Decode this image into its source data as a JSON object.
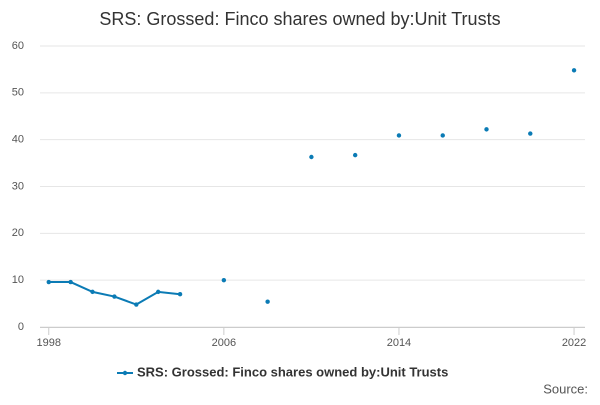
{
  "chart_data": {
    "type": "line",
    "title": "SRS: Grossed: Finco shares owned by:Unit Trusts",
    "x": [
      1998,
      1999,
      2000,
      2001,
      2002,
      2003,
      2004,
      2005,
      2006,
      2007,
      2008,
      2009,
      2010,
      2011,
      2012,
      2013,
      2014,
      2015,
      2016,
      2017,
      2018,
      2019,
      2020,
      2021,
      2022
    ],
    "series": [
      {
        "name": "SRS: Grossed: Finco shares owned by:Unit Trusts",
        "color": "#0b7bb5",
        "values": [
          9.6,
          9.6,
          7.5,
          6.5,
          4.8,
          7.5,
          7.0,
          null,
          10.0,
          null,
          5.4,
          null,
          36.3,
          null,
          36.7,
          null,
          40.9,
          null,
          40.9,
          null,
          42.2,
          null,
          41.3,
          null,
          54.8
        ]
      }
    ],
    "xlim": [
      1997.6,
      2022.5
    ],
    "xticks": [
      1998,
      2006,
      2014,
      2022
    ],
    "ylim": [
      0,
      60
    ],
    "yticks": [
      0,
      10,
      20,
      30,
      40,
      50,
      60
    ],
    "grid": true,
    "legend": "bottom",
    "source_label": "Source:"
  }
}
